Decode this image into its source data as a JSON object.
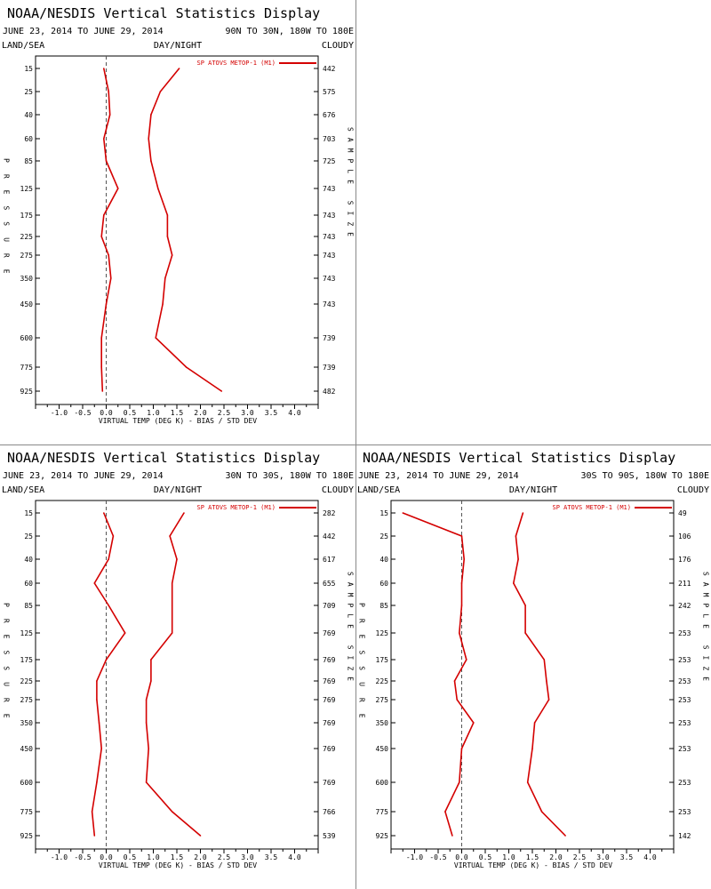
{
  "colors": {
    "series": "#d40000",
    "axis": "#000000",
    "zero_line": "#555555",
    "divider": "#888888"
  },
  "chart_data": [
    {
      "type": "line",
      "title": "NOAA/NESDIS Vertical Statistics Display",
      "date_range": "JUNE 23, 2014 TO JUNE 29, 2014",
      "region": "90N TO 30N, 180W TO 180E",
      "label_left": "LAND/SEA",
      "label_center": "DAY/NIGHT",
      "label_right": "CLOUDY",
      "xlabel": "VIRTUAL TEMP (DEG K) - BIAS / STD DEV",
      "ylabel": "PRESSURE",
      "y2label": "SAMPLE SIZE",
      "xlim": [
        -1.5,
        4.5
      ],
      "x_ticks": [
        "-1.0",
        "-0.5",
        "0.0",
        "0.5",
        "1.0",
        "1.5",
        "2.0",
        "2.5",
        "3.0",
        "3.5",
        "4.0"
      ],
      "pressure_levels": [
        "15",
        "25",
        "40",
        "60",
        "85",
        "125",
        "175",
        "225",
        "275",
        "350",
        "450",
        "600",
        "775",
        "925"
      ],
      "sample_size": [
        "442",
        "575",
        "676",
        "703",
        "725",
        "743",
        "743",
        "743",
        "743",
        "743",
        "743",
        "739",
        "739",
        "482"
      ],
      "series": [
        {
          "name": "SP ATOVS METOP-1 (M1)",
          "label": "bias",
          "values": [
            -0.05,
            0.05,
            0.08,
            -0.05,
            0.0,
            0.25,
            -0.05,
            -0.1,
            0.05,
            0.1,
            0.0,
            -0.1,
            -0.1,
            -0.08
          ]
        },
        {
          "label": "std_dev",
          "values": [
            1.55,
            1.15,
            0.95,
            0.9,
            0.95,
            1.1,
            1.3,
            1.3,
            1.4,
            1.25,
            1.2,
            1.05,
            1.7,
            2.45
          ]
        }
      ]
    },
    {
      "type": "line",
      "title": "NOAA/NESDIS Vertical Statistics Display",
      "date_range": "JUNE 23, 2014 TO JUNE 29, 2014",
      "region": "30N TO 30S, 180W TO 180E",
      "label_left": "LAND/SEA",
      "label_center": "DAY/NIGHT",
      "label_right": "CLOUDY",
      "xlabel": "VIRTUAL TEMP (DEG K) - BIAS / STD DEV",
      "ylabel": "PRESSURE",
      "y2label": "SAMPLE SIZE",
      "xlim": [
        -1.5,
        4.5
      ],
      "x_ticks": [
        "-1.0",
        "-0.5",
        "0.0",
        "0.5",
        "1.0",
        "1.5",
        "2.0",
        "2.5",
        "3.0",
        "3.5",
        "4.0"
      ],
      "pressure_levels": [
        "15",
        "25",
        "40",
        "60",
        "85",
        "125",
        "175",
        "225",
        "275",
        "350",
        "450",
        "600",
        "775",
        "925"
      ],
      "sample_size": [
        "282",
        "442",
        "617",
        "655",
        "709",
        "769",
        "769",
        "769",
        "769",
        "769",
        "769",
        "769",
        "766",
        "539"
      ],
      "series": [
        {
          "name": "SP ATOVS METOP-1 (M1)",
          "label": "bias",
          "values": [
            -0.05,
            0.15,
            0.05,
            -0.25,
            0.05,
            0.4,
            0.0,
            -0.2,
            -0.2,
            -0.15,
            -0.1,
            -0.2,
            -0.3,
            -0.25
          ]
        },
        {
          "label": "std_dev",
          "values": [
            1.65,
            1.35,
            1.5,
            1.4,
            1.4,
            1.4,
            0.95,
            0.95,
            0.85,
            0.85,
            0.9,
            0.85,
            1.4,
            2.0
          ]
        }
      ]
    },
    {
      "type": "line",
      "title": "NOAA/NESDIS Vertical Statistics Display",
      "date_range": "JUNE 23, 2014 TO JUNE 29, 2014",
      "region": "30S TO 90S, 180W TO 180E",
      "label_left": "LAND/SEA",
      "label_center": "DAY/NIGHT",
      "label_right": "CLOUDY",
      "xlabel": "VIRTUAL TEMP (DEG K) - BIAS / STD DEV",
      "ylabel": "PRESSURE",
      "y2label": "SAMPLE SIZE",
      "xlim": [
        -1.5,
        4.5
      ],
      "x_ticks": [
        "-1.0",
        "-0.5",
        "0.0",
        "0.5",
        "1.0",
        "1.5",
        "2.0",
        "2.5",
        "3.0",
        "3.5",
        "4.0"
      ],
      "pressure_levels": [
        "15",
        "25",
        "40",
        "60",
        "85",
        "125",
        "175",
        "225",
        "275",
        "350",
        "450",
        "600",
        "775",
        "925"
      ],
      "sample_size": [
        "49",
        "106",
        "176",
        "211",
        "242",
        "253",
        "253",
        "253",
        "253",
        "253",
        "253",
        "253",
        "253",
        "142"
      ],
      "series": [
        {
          "name": "SP ATOVS METOP-1 (M1)",
          "label": "bias",
          "values": [
            -1.25,
            0.0,
            0.05,
            0.0,
            0.0,
            -0.05,
            0.1,
            -0.15,
            -0.1,
            0.25,
            0.0,
            -0.05,
            -0.35,
            -0.2
          ]
        },
        {
          "label": "std_dev",
          "values": [
            1.3,
            1.15,
            1.2,
            1.1,
            1.35,
            1.35,
            1.75,
            1.8,
            1.85,
            1.55,
            1.5,
            1.4,
            1.7,
            2.2
          ]
        }
      ]
    }
  ]
}
